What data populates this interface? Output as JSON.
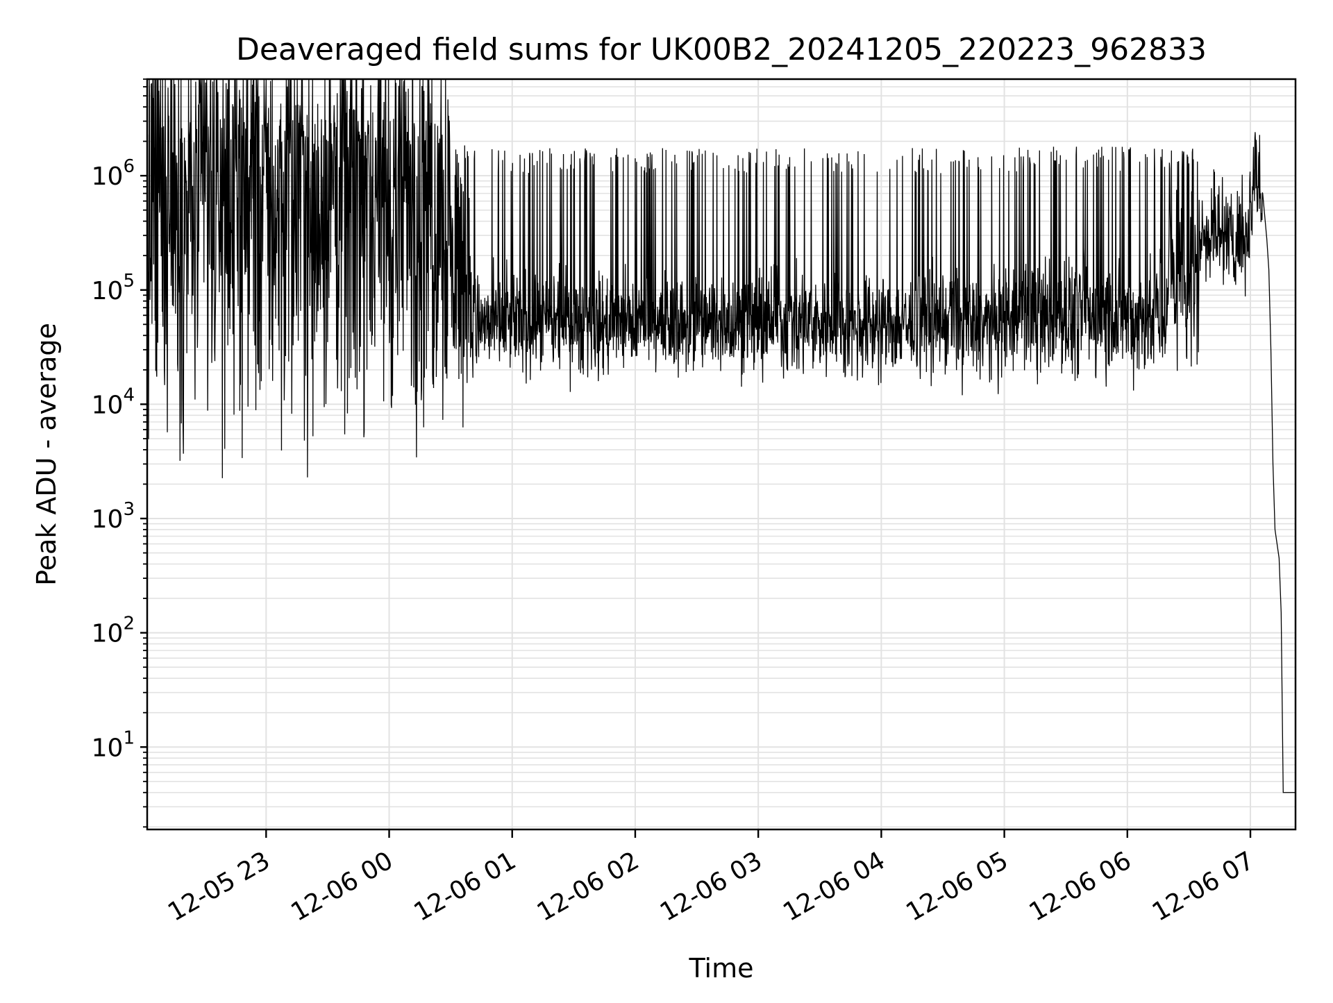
{
  "chart_data": {
    "type": "line",
    "title": "Deaveraged field sums for UK00B2_20241205_220223_962833",
    "xlabel": "Time",
    "ylabel": "Peak ADU - average",
    "x_start": "2024-12-05 22:02",
    "x_end": "2024-12-06 07:22",
    "xlim": [
      "2024-12-05 22:02",
      "2024-12-06 07:22"
    ],
    "ylim": [
      1.9,
      7000000
    ],
    "yscale": "log",
    "grid": "both",
    "legend": "none",
    "line_color": "#000000",
    "grid_color": "#e2e2e2",
    "x_ticks": [
      {
        "t": "2024-12-05 23:00",
        "label": "12-05 23"
      },
      {
        "t": "2024-12-06 00:00",
        "label": "12-06 00"
      },
      {
        "t": "2024-12-06 01:00",
        "label": "12-06 01"
      },
      {
        "t": "2024-12-06 02:00",
        "label": "12-06 02"
      },
      {
        "t": "2024-12-06 03:00",
        "label": "12-06 03"
      },
      {
        "t": "2024-12-06 04:00",
        "label": "12-06 04"
      },
      {
        "t": "2024-12-06 05:00",
        "label": "12-06 05"
      },
      {
        "t": "2024-12-06 06:00",
        "label": "12-06 06"
      },
      {
        "t": "2024-12-06 07:00",
        "label": "12-06 07"
      }
    ],
    "y_ticks": [
      {
        "value": 10,
        "base": "10",
        "exp": "1"
      },
      {
        "value": 100,
        "base": "10",
        "exp": "2"
      },
      {
        "value": 1000,
        "base": "10",
        "exp": "3"
      },
      {
        "value": 10000,
        "base": "10",
        "exp": "4"
      },
      {
        "value": 100000,
        "base": "10",
        "exp": "5"
      },
      {
        "value": 1000000,
        "base": "10",
        "exp": "6"
      }
    ],
    "segments": [
      {
        "t_start": "2024-12-05 22:02",
        "t_end": "2024-12-06 00:30",
        "baseline": 500000,
        "spread": 0.9,
        "spike_prob": 0.05,
        "spike_value": 2500000
      },
      {
        "t_start": "2024-12-06 00:30",
        "t_end": "2024-12-06 00:40",
        "baseline": 150000,
        "spread": 0.6,
        "spike_prob": 0.1,
        "spike_value": 1500000
      },
      {
        "t_start": "2024-12-06 00:40",
        "t_end": "2024-12-06 05:00",
        "baseline": 50000,
        "spread": 0.22,
        "spike_prob": 0.1,
        "spike_value": 1400000
      },
      {
        "t_start": "2024-12-06 05:00",
        "t_end": "2024-12-06 05:55",
        "baseline": 58000,
        "spread": 0.25,
        "spike_prob": 0.1,
        "spike_value": 1450000
      },
      {
        "t_start": "2024-12-06 05:55",
        "t_end": "2024-12-06 06:20",
        "baseline": 55000,
        "spread": 0.25,
        "spike_prob": 0.12,
        "spike_value": 1450000
      },
      {
        "t_start": "2024-12-06 06:20",
        "t_end": "2024-12-06 06:35",
        "baseline": 120000,
        "spread": 0.4,
        "spike_prob": 0.15,
        "spike_value": 1400000
      },
      {
        "t_start": "2024-12-06 06:35",
        "t_end": "2024-12-06 07:00",
        "baseline": 300000,
        "spread": 0.2,
        "spike_prob": 0.05,
        "spike_value": 1000000
      },
      {
        "t_start": "2024-12-06 07:00",
        "t_end": "2024-12-06 07:06",
        "baseline": 700000,
        "spread": 0.2,
        "spike_prob": 0.2,
        "spike_value": 2000000
      }
    ],
    "decay_points": [
      {
        "t": "2024-12-06 07:06",
        "value": 700000
      },
      {
        "t": "2024-12-06 07:08",
        "value": 280000
      },
      {
        "t": "2024-12-06 07:09",
        "value": 150000
      },
      {
        "t": "2024-12-06 07:10",
        "value": 30000
      },
      {
        "t": "2024-12-06 07:11",
        "value": 3000
      },
      {
        "t": "2024-12-06 07:12",
        "value": 800
      },
      {
        "t": "2024-12-06 07:14",
        "value": 450
      },
      {
        "t": "2024-12-06 07:15",
        "value": 150
      },
      {
        "t": "2024-12-06 07:16",
        "value": 4
      },
      {
        "t": "2024-12-06 07:22",
        "value": 4
      }
    ]
  }
}
